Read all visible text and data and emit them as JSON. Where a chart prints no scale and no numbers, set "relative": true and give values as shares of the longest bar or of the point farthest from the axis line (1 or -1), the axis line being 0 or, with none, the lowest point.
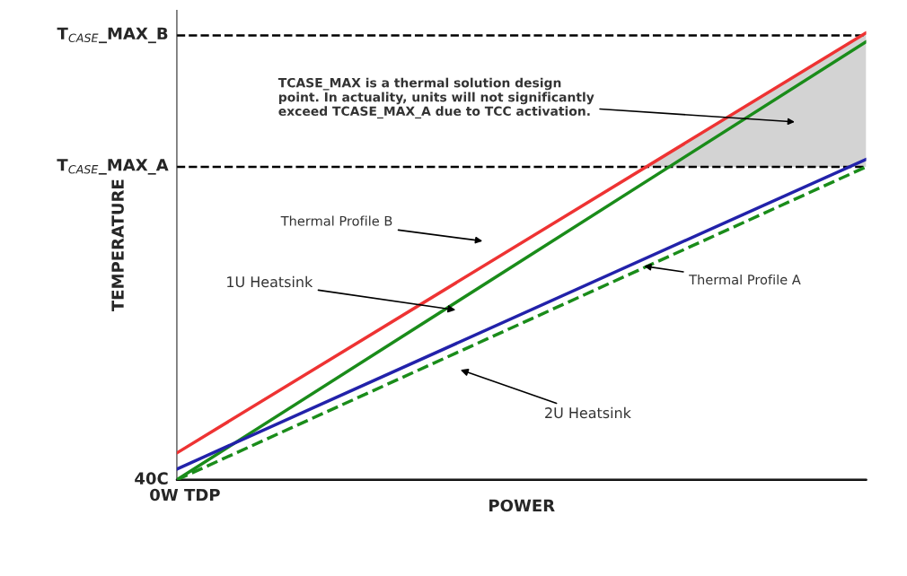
{
  "chart_data": {
    "type": "line",
    "relative": true,
    "xlabel": "POWER",
    "ylabel": "TEMPERATURE",
    "categories": [
      null,
      null
    ],
    "series": [
      {
        "color": "#ee3333",
        "values": [
          0.06,
          1.0
        ]
      },
      {
        "color": "#1a8c1a",
        "values": [
          0,
          0.98
        ]
      },
      {
        "color": "#2222aa",
        "values": [
          0.024,
          0.717
        ]
      },
      {
        "color": "#1a8c1a",
        "values": [
          0,
          0.7
        ],
        "line_style": "dashed"
      }
    ],
    "ref_lines": [
      {
        "axis": "y",
        "value": 0,
        "label": "40C",
        "line_style": "solid",
        "color": "#000000"
      },
      {
        "axis": "y",
        "value": 0.7,
        "label": "T$_{CASE}$_MAX_A",
        "line_style": "dashed",
        "color": "#000000"
      },
      {
        "axis": "y",
        "value": 0.994,
        "label": "T$_{CASE}$_MAX_B",
        "line_style": "dashed",
        "color": "#000000"
      }
    ],
    "annotations": [
      "0W TDP",
      "Thermal Profile B",
      "1U Heatsink",
      "Thermal Profile A",
      "2U Heatsink",
      "TCASE_MAX is a thermal solution design\npoint. In actuality, units will not significantly\nexceed TCASE_MAX_A due to TCC activation."
    ],
    "legend": false,
    "marker": "none",
    "line_style": "solid"
  }
}
